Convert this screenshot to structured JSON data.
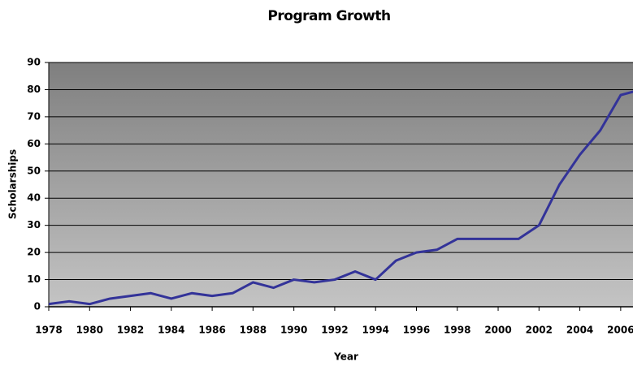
{
  "chart_data": {
    "type": "line",
    "title": "Program Growth",
    "x_label": "Year",
    "y_label": "Scholarships",
    "x": [
      1978,
      1979,
      1980,
      1981,
      1982,
      1983,
      1984,
      1985,
      1986,
      1987,
      1988,
      1989,
      1990,
      1991,
      1992,
      1993,
      1994,
      1995,
      1996,
      1997,
      1998,
      1999,
      2000,
      2001,
      2002,
      2003,
      2004,
      2005,
      2006,
      2007
    ],
    "series": [
      {
        "name": "Scholarships",
        "color": "#333399",
        "values": [
          1,
          2,
          1,
          3,
          4,
          5,
          3,
          5,
          4,
          5,
          9,
          7,
          10,
          9,
          10,
          13,
          10,
          17,
          20,
          21,
          25,
          25,
          25,
          25,
          30,
          45,
          56,
          65,
          78,
          80
        ]
      }
    ],
    "xlim": [
      1978,
      2007
    ],
    "xticks": [
      1978,
      1980,
      1982,
      1984,
      1986,
      1988,
      1990,
      1992,
      1994,
      1996,
      1998,
      2000,
      2002,
      2004,
      2006
    ],
    "ylim": [
      0,
      90
    ],
    "yticks": [
      0,
      10,
      20,
      30,
      40,
      50,
      60,
      70,
      80,
      90
    ],
    "grid": true
  }
}
